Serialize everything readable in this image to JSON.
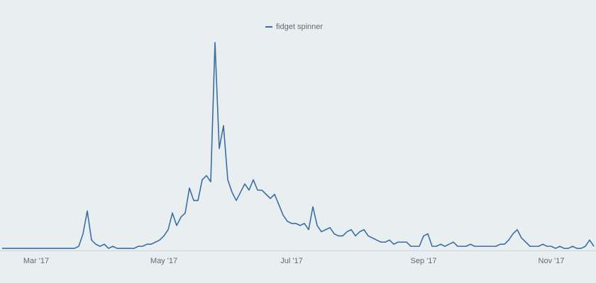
{
  "chart_data": {
    "type": "line",
    "categories": [
      null,
      null,
      null,
      null,
      null,
      null,
      null,
      null,
      "Mar '17",
      null,
      null,
      null,
      null,
      null,
      null,
      null,
      null,
      null,
      null,
      null,
      null,
      null,
      null,
      null,
      null,
      null,
      null,
      null,
      null,
      null,
      null,
      null,
      null,
      null,
      null,
      null,
      null,
      null,
      "May '17",
      null,
      null,
      null,
      null,
      null,
      null,
      null,
      null,
      null,
      null,
      null,
      null,
      null,
      null,
      null,
      null,
      null,
      null,
      null,
      null,
      null,
      null,
      null,
      null,
      null,
      null,
      null,
      null,
      null,
      "Jul '17",
      null,
      null,
      null,
      null,
      null,
      null,
      null,
      null,
      null,
      null,
      null,
      null,
      null,
      null,
      null,
      null,
      null,
      null,
      null,
      null,
      null,
      null,
      null,
      null,
      null,
      null,
      null,
      null,
      null,
      null,
      "Sep '17",
      null,
      null,
      null,
      null,
      null,
      null,
      null,
      null,
      null,
      null,
      null,
      null,
      null,
      null,
      null,
      null,
      null,
      null,
      null,
      null,
      null,
      null,
      null,
      null,
      null,
      null,
      null,
      null,
      null,
      "Nov '17",
      null,
      null,
      null,
      null,
      null,
      null,
      null,
      null,
      null,
      null
    ],
    "series": [
      {
        "name": "fidget spinner",
        "color": "#3a6ea5",
        "values": [
          1,
          1,
          1,
          1,
          1,
          1,
          1,
          1,
          1,
          1,
          1,
          1,
          1,
          1,
          1,
          1,
          1,
          1,
          2,
          8,
          19,
          5,
          3,
          2,
          3,
          1,
          2,
          1,
          1,
          1,
          1,
          1,
          2,
          2,
          3,
          3,
          4,
          5,
          7,
          10,
          18,
          12,
          16,
          18,
          30,
          24,
          24,
          34,
          36,
          33,
          100,
          49,
          60,
          34,
          28,
          24,
          28,
          32,
          29,
          34,
          29,
          29,
          27,
          25,
          27,
          22,
          17,
          14,
          13,
          13,
          12,
          13,
          10,
          21,
          12,
          9,
          10,
          11,
          8,
          7,
          7,
          9,
          10,
          7,
          9,
          10,
          7,
          6,
          5,
          4,
          4,
          5,
          3,
          4,
          4,
          4,
          2,
          2,
          2,
          7,
          8,
          2,
          2,
          3,
          2,
          3,
          4,
          2,
          2,
          2,
          3,
          2,
          2,
          2,
          2,
          2,
          2,
          3,
          3,
          5,
          8,
          10,
          6,
          4,
          2,
          2,
          2,
          3,
          2,
          2,
          1,
          2,
          1,
          1,
          2,
          1,
          1,
          2,
          5,
          2
        ]
      }
    ],
    "ylim": [
      0,
      100
    ],
    "legend": "top"
  }
}
